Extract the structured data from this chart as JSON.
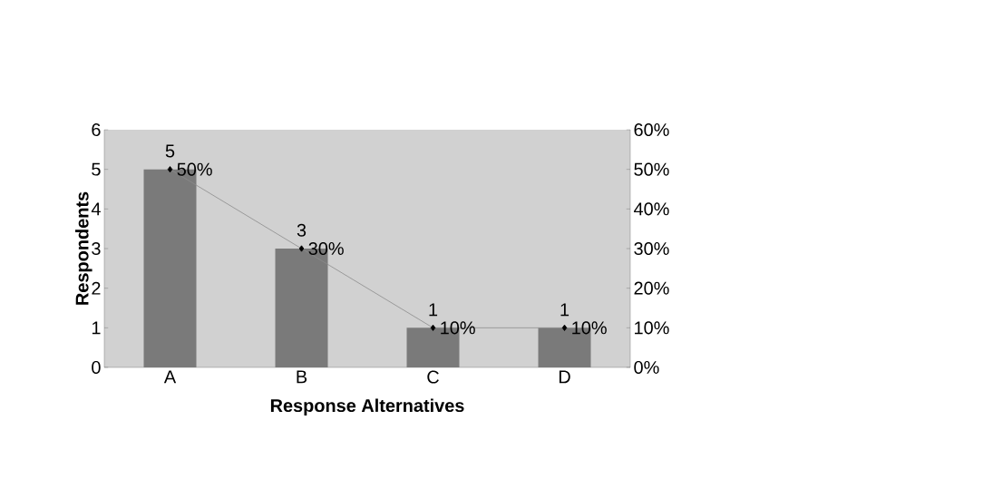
{
  "chart_data": {
    "type": "bar",
    "xlabel": "Response Alternatives",
    "ylabel": "Respondents",
    "categories": [
      "A",
      "B",
      "C",
      "D"
    ],
    "series": [
      {
        "color": "#7a7a7a",
        "values": [
          5,
          3,
          1,
          1
        ],
        "value_labels": [
          "5",
          "3",
          "1",
          "1"
        ]
      },
      {
        "type": "line",
        "axis": "y2",
        "color": "#8c8c8c",
        "marker": "diamond",
        "values": [
          50,
          30,
          10,
          10
        ],
        "value_labels": [
          "50%",
          "30%",
          "10%",
          "10%"
        ]
      }
    ],
    "ylim": [
      0,
      6
    ],
    "yticks": [
      0,
      1,
      2,
      3,
      4,
      5,
      6
    ],
    "y2lim": [
      0,
      60
    ],
    "y2ticks": [
      {
        "value": 0,
        "label": "0%"
      },
      {
        "value": 10,
        "label": "10%"
      },
      {
        "value": 20,
        "label": "20%"
      },
      {
        "value": 30,
        "label": "30%"
      },
      {
        "value": 40,
        "label": "40%"
      },
      {
        "value": 50,
        "label": "50%"
      },
      {
        "value": 60,
        "label": "60%"
      }
    ],
    "grid": false
  }
}
